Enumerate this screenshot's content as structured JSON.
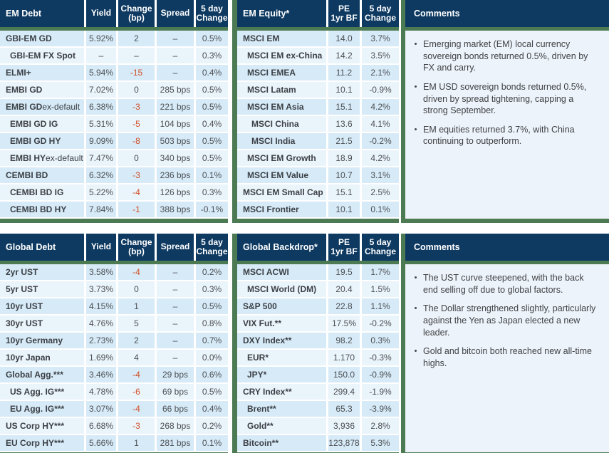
{
  "colors": {
    "header_navy": "#0e3a62",
    "accent_green": "#4c7a53",
    "row_dark": "#d6eaf7",
    "row_light": "#eaf4fb",
    "comments_bg": "#edf3fa",
    "negative_red": "#d2512a",
    "label_text": "#3c4046",
    "value_text": "#4d5054",
    "header_text": "#ffffff"
  },
  "ui": {
    "bullet_char": "•"
  },
  "tables": [
    {
      "key": "em-debt",
      "title": "EM Debt",
      "columns": [
        "Yield",
        "Change\n(bp)",
        "Spread",
        "5 day\nChange"
      ],
      "rows": [
        {
          "label": "GBI-EM GD",
          "indent": 0,
          "values": [
            "5.92%",
            "2",
            "–",
            "0.5%"
          ]
        },
        {
          "label": "GBI-EM FX Spot",
          "indent": 1,
          "values": [
            "–",
            "–",
            "–",
            "0.3%"
          ]
        },
        {
          "label": "ELMI+",
          "indent": 0,
          "values": [
            "5.94%",
            "-15",
            "–",
            "0.4%"
          ]
        },
        {
          "label": "EMBI GD",
          "indent": 0,
          "values": [
            "7.02%",
            "0",
            "285 bps",
            "0.5%"
          ]
        },
        {
          "label": "EMBI GD",
          "label_rest": " ex-default",
          "indent": 0,
          "values": [
            "6.38%",
            "-3",
            "221 bps",
            "0.5%"
          ]
        },
        {
          "label": "EMBI GD IG",
          "indent": 1,
          "values": [
            "5.31%",
            "-5",
            "104 bps",
            "0.4%"
          ]
        },
        {
          "label": "EMBI GD HY",
          "indent": 1,
          "values": [
            "9.09%",
            "-8",
            "503 bps",
            "0.5%"
          ]
        },
        {
          "label": "EMBI HY",
          "label_rest": " ex-default",
          "indent": 1,
          "values": [
            "7.47%",
            "0",
            "340 bps",
            "0.5%"
          ]
        },
        {
          "label": "CEMBI BD",
          "indent": 0,
          "values": [
            "6.32%",
            "-3",
            "236 bps",
            "0.1%"
          ]
        },
        {
          "label": "CEMBI BD IG",
          "indent": 1,
          "values": [
            "5.22%",
            "-4",
            "126 bps",
            "0.3%"
          ]
        },
        {
          "label": "CEMBI BD HY",
          "indent": 1,
          "values": [
            "7.84%",
            "-1",
            "388 bps",
            "-0.1%"
          ]
        }
      ]
    },
    {
      "key": "em-equity",
      "title": "EM Equity*",
      "columns": [
        "PE\n1yr BF",
        "5 day\nChange"
      ],
      "rows": [
        {
          "label": "MSCI EM",
          "indent": 0,
          "values": [
            "14.0",
            "3.7%"
          ]
        },
        {
          "label": "MSCI EM ex-China",
          "indent": 1,
          "values": [
            "14.2",
            "3.5%"
          ]
        },
        {
          "label": "MSCI EMEA",
          "indent": 1,
          "values": [
            "11.2",
            "2.1%"
          ]
        },
        {
          "label": "MSCI Latam",
          "indent": 1,
          "values": [
            "10.1",
            "-0.9%"
          ]
        },
        {
          "label": "MSCI EM Asia",
          "indent": 1,
          "values": [
            "15.1",
            "4.2%"
          ]
        },
        {
          "label": "MSCI China",
          "indent": 2,
          "values": [
            "13.6",
            "4.1%"
          ]
        },
        {
          "label": "MSCI India",
          "indent": 2,
          "values": [
            "21.5",
            "-0.2%"
          ]
        },
        {
          "label": "MSCI EM Growth",
          "indent": 1,
          "values": [
            "18.9",
            "4.2%"
          ]
        },
        {
          "label": "MSCI EM Value",
          "indent": 1,
          "values": [
            "10.7",
            "3.1%"
          ]
        },
        {
          "label": "MSCI EM Small Cap",
          "indent": 0,
          "values": [
            "15.1",
            "2.5%"
          ]
        },
        {
          "label": "MSCI Frontier",
          "indent": 0,
          "values": [
            "10.1",
            "0.1%"
          ]
        }
      ]
    },
    {
      "key": "global-debt",
      "title": "Global Debt",
      "columns": [
        "Yield",
        "Change\n(bp)",
        "Spread",
        "5 day\nChange"
      ],
      "rows": [
        {
          "label": "2yr UST",
          "indent": 0,
          "values": [
            "3.58%",
            "-4",
            "–",
            "0.2%"
          ]
        },
        {
          "label": "5yr UST",
          "indent": 0,
          "values": [
            "3.73%",
            "0",
            "–",
            "0.3%"
          ]
        },
        {
          "label": "10yr UST",
          "indent": 0,
          "values": [
            "4.15%",
            "1",
            "–",
            "0.5%"
          ]
        },
        {
          "label": "30yr UST",
          "indent": 0,
          "values": [
            "4.76%",
            "5",
            "–",
            "0.8%"
          ]
        },
        {
          "label": "10yr Germany",
          "indent": 0,
          "values": [
            "2.73%",
            "2",
            "–",
            "0.7%"
          ]
        },
        {
          "label": "10yr Japan",
          "indent": 0,
          "values": [
            "1.69%",
            "4",
            "–",
            "0.0%"
          ]
        },
        {
          "label": "Global Agg.***",
          "indent": 0,
          "values": [
            "3.46%",
            "-4",
            "29 bps",
            "0.6%"
          ]
        },
        {
          "label": "US Agg. IG***",
          "indent": 1,
          "values": [
            "4.78%",
            "-6",
            "69 bps",
            "0.5%"
          ]
        },
        {
          "label": "EU Agg. IG***",
          "indent": 1,
          "values": [
            "3.07%",
            "-4",
            "66 bps",
            "0.4%"
          ]
        },
        {
          "label": "US Corp HY***",
          "indent": 0,
          "values": [
            "6.68%",
            "-3",
            "268 bps",
            "0.2%"
          ]
        },
        {
          "label": "EU Corp HY***",
          "indent": 0,
          "values": [
            "5.66%",
            "1",
            "281 bps",
            "0.1%"
          ]
        }
      ]
    },
    {
      "key": "global-backdrop",
      "title": "Global Backdrop*",
      "columns": [
        "PE\n1yr BF",
        "5 day\nChange"
      ],
      "rows": [
        {
          "label": "MSCI ACWI",
          "indent": 0,
          "values": [
            "19.5",
            "1.7%"
          ]
        },
        {
          "label": "MSCI World (DM)",
          "indent": 1,
          "values": [
            "20.4",
            "1.5%"
          ]
        },
        {
          "label": "S&P 500",
          "indent": 0,
          "values": [
            "22.8",
            "1.1%"
          ]
        },
        {
          "label": "VIX Fut.**",
          "indent": 0,
          "values": [
            "17.5%",
            "-0.2%"
          ]
        },
        {
          "label": "DXY Index**",
          "indent": 0,
          "values": [
            "98.2",
            "0.3%"
          ]
        },
        {
          "label": "EUR*",
          "indent": 1,
          "values": [
            "1.170",
            "-0.3%"
          ]
        },
        {
          "label": "JPY*",
          "indent": 1,
          "values": [
            "150.0",
            "-0.9%"
          ]
        },
        {
          "label": "CRY Index**",
          "indent": 0,
          "values": [
            "299.4",
            "-1.9%"
          ]
        },
        {
          "label": "Brent**",
          "indent": 1,
          "values": [
            "65.3",
            "-3.9%"
          ]
        },
        {
          "label": "Gold**",
          "indent": 1,
          "values": [
            "3,936",
            "2.8%"
          ]
        },
        {
          "label": "Bitcoin**",
          "indent": 0,
          "values": [
            "123,878",
            "5.3%"
          ]
        }
      ]
    }
  ],
  "comments_panels": [
    {
      "key": "comments-em",
      "title": "Comments",
      "bullets": [
        "Emerging market (EM) local currency sovereign bonds returned 0.5%, driven by FX and carry.",
        "EM USD sovereign bonds returned 0.5%, driven by spread tightening, capping a strong September.",
        "EM equities returned 3.7%, with China continuing to outperform."
      ]
    },
    {
      "key": "comments-global",
      "title": "Comments",
      "bullets": [
        "The UST curve steepened, with the back end selling off due to global factors.",
        "The Dollar strengthened slightly, particularly against the Yen as Japan elected a new leader.",
        "Gold and bitcoin both reached new all-time highs."
      ]
    }
  ]
}
